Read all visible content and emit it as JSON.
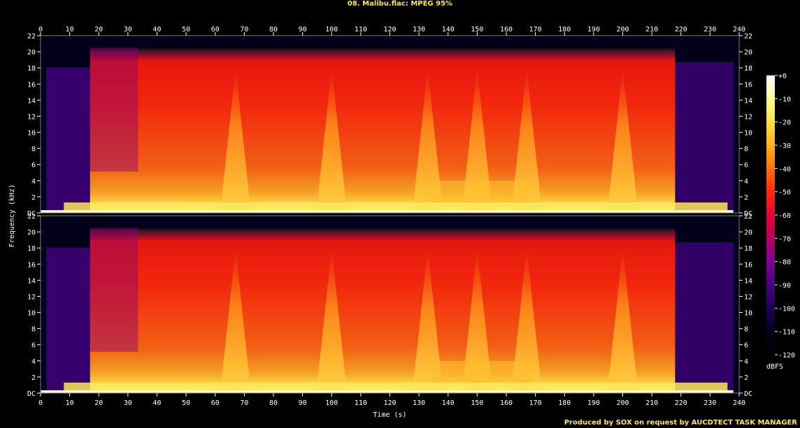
{
  "title": "08. Malibu.flac: MPEG 95%",
  "footer": "Produced by SOX on request by AUCDTECT TASK MANAGER",
  "colors": {
    "background": "#000000",
    "text": "#ffffff",
    "title_text": "#ffe84c"
  },
  "chart_data": {
    "type": "heatmap",
    "subtype": "spectrogram",
    "xlabel": "Time (s)",
    "ylabel": "Frequency (kHz)",
    "xlim": [
      0,
      240
    ],
    "ylim": [
      0,
      22
    ],
    "x_ticks": [
      0,
      10,
      20,
      30,
      40,
      50,
      60,
      70,
      80,
      90,
      100,
      110,
      120,
      130,
      140,
      150,
      160,
      170,
      180,
      190,
      200,
      210,
      220,
      230,
      240
    ],
    "y_ticks": [
      "DC",
      "2",
      "4",
      "6",
      "8",
      "10",
      "12",
      "14",
      "16",
      "18",
      "20",
      "22"
    ],
    "channels": 2,
    "colorbar": {
      "label": "dBFS",
      "range": [
        -120,
        0
      ],
      "ticks": [
        "+0",
        "-10",
        "-20",
        "-30",
        "-40",
        "-50",
        "-60",
        "-70",
        "-80",
        "-90",
        "-100",
        "-110",
        "-120"
      ],
      "colors": [
        "#ffffff",
        "#ffff90",
        "#ffe04a",
        "#ffb020",
        "#ff7010",
        "#ff2a0c",
        "#e4003a",
        "#b6005e",
        "#7c0090",
        "#460080",
        "#1c0050",
        "#070020",
        "#000000"
      ]
    },
    "spectrum": {
      "lowpass_cutoff_khz": 20.5,
      "signal_start_s": 2,
      "full_bandwidth_start_s": 17,
      "level_change_s": 33.5,
      "full_bandwidth_end_s": 218,
      "signal_end_s": 238,
      "sweeps_s": [
        67,
        100,
        133,
        150,
        167,
        200
      ],
      "busy_segment_s": [
        134,
        168
      ]
    }
  }
}
